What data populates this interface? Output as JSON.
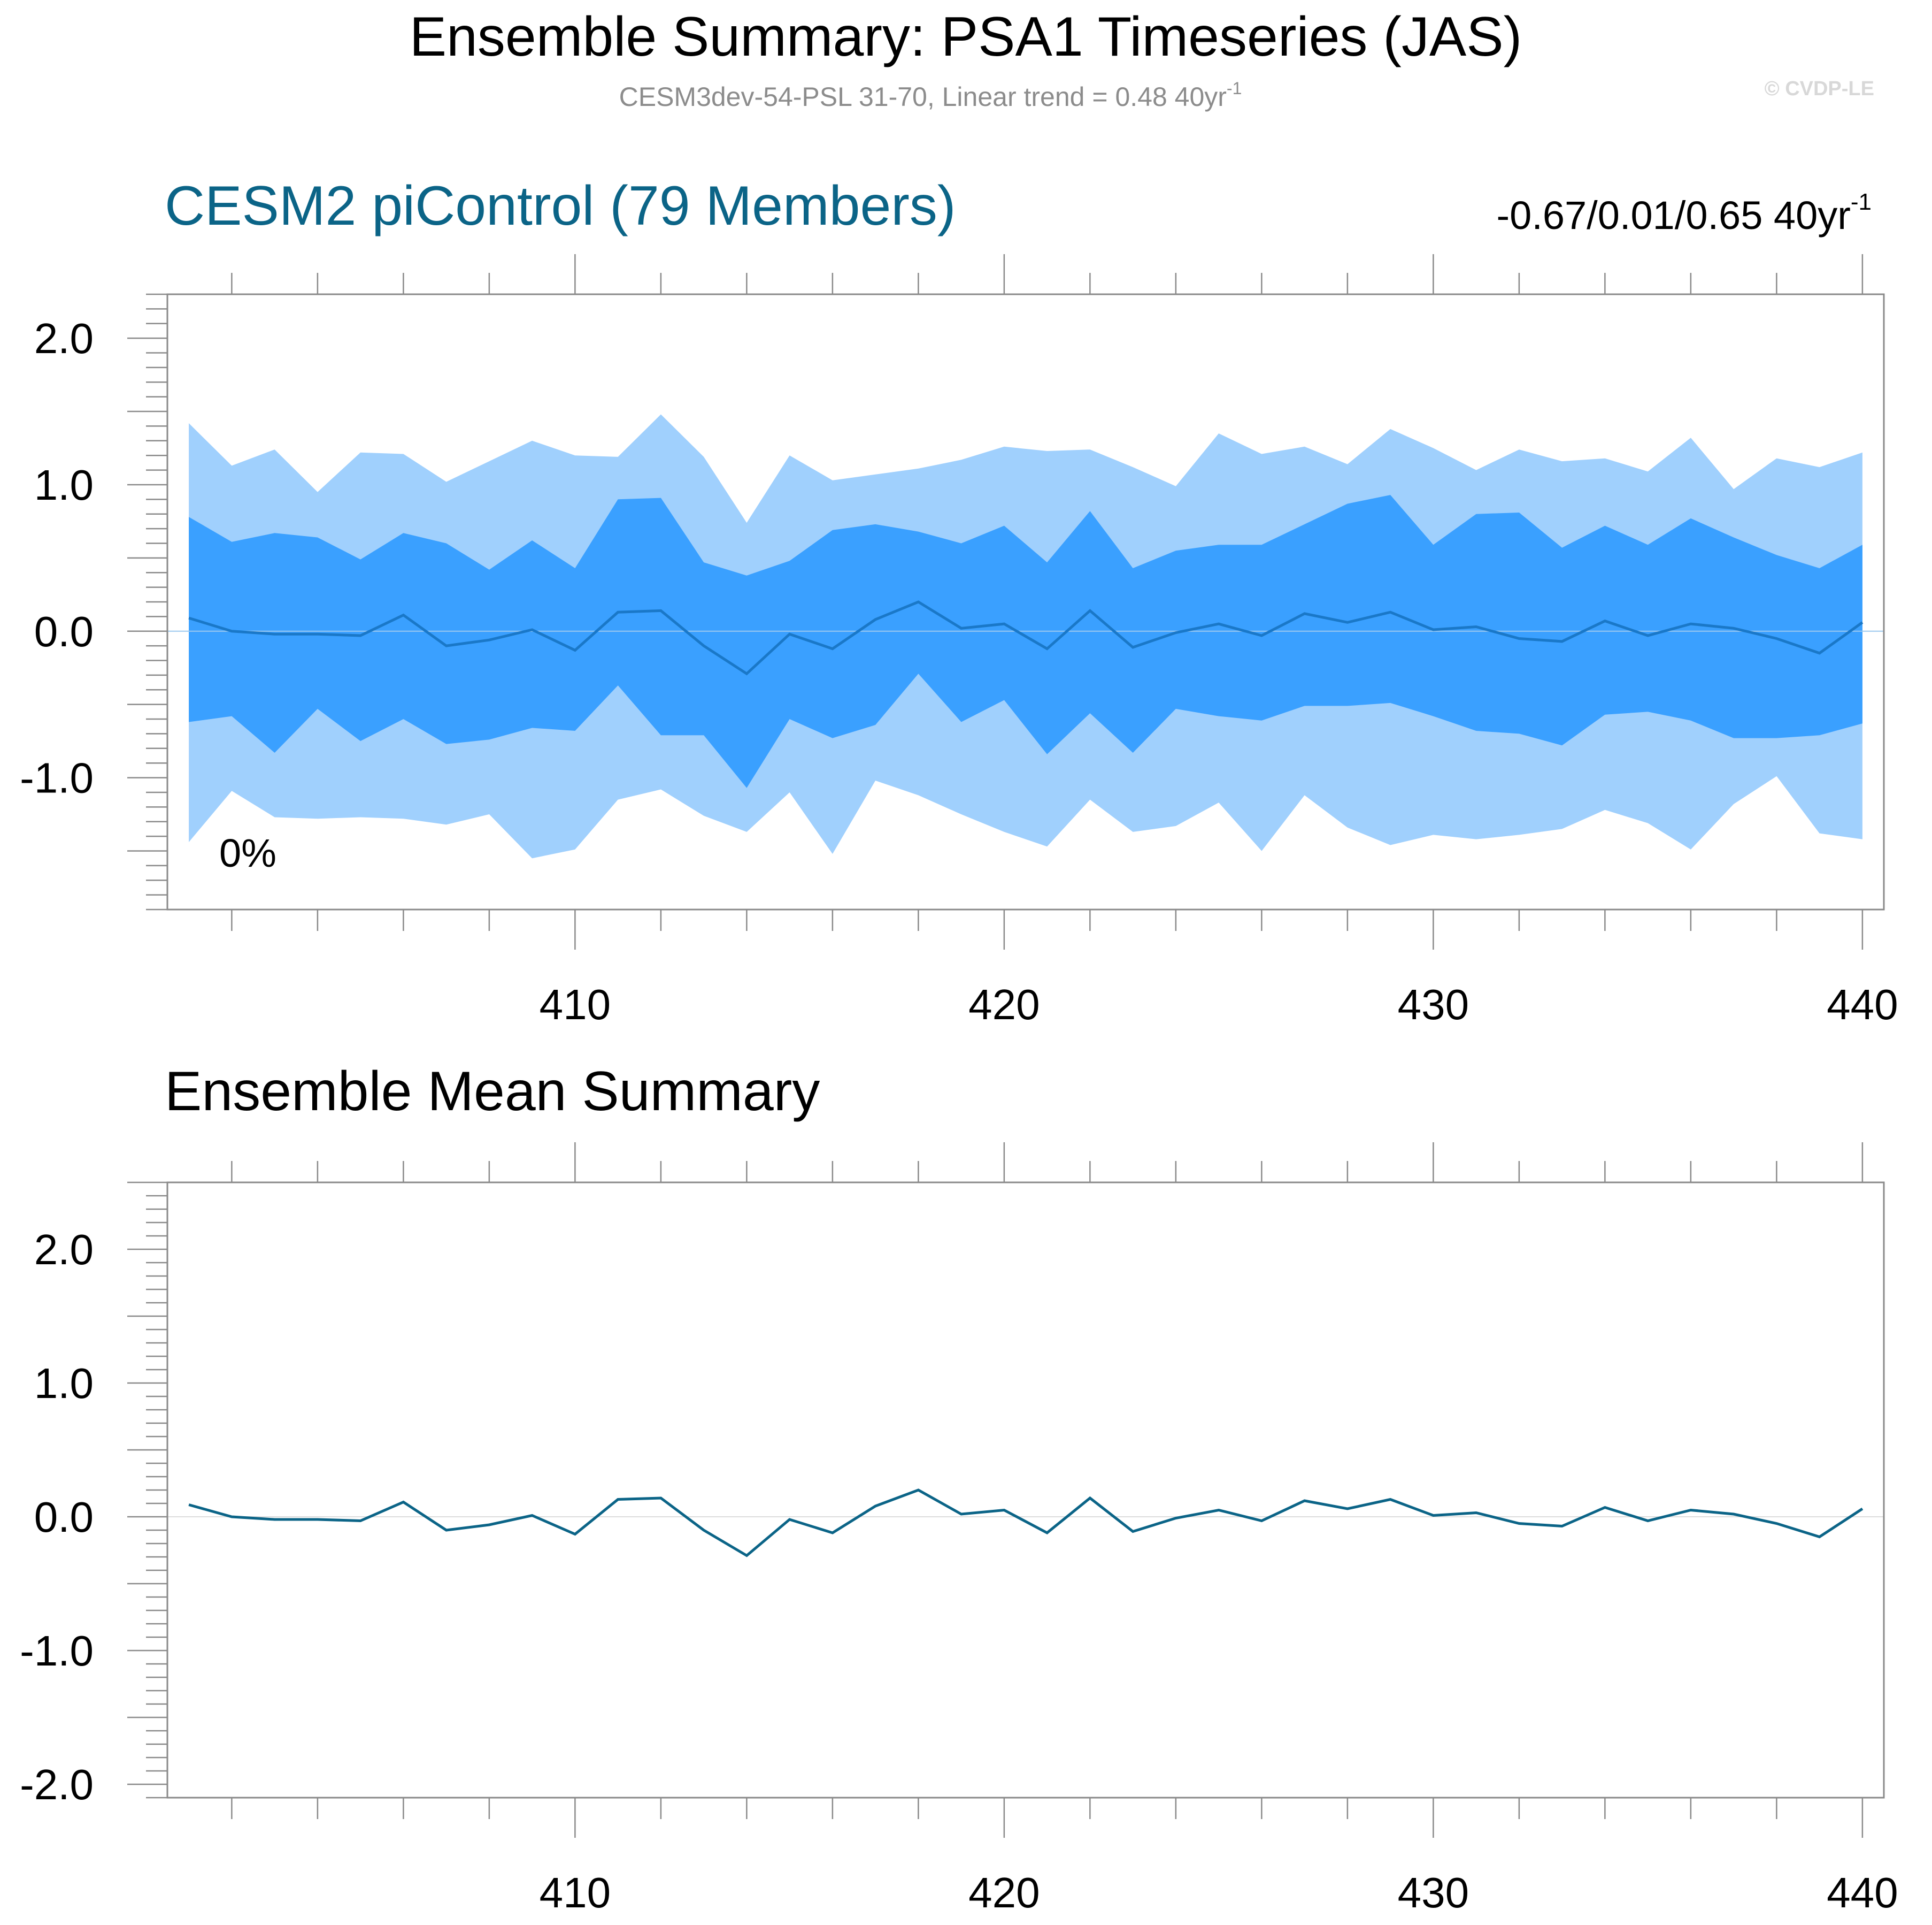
{
  "title": "Ensemble Summary: PSA1 Timeseries (JAS)",
  "subtitle": {
    "text": "CESM3dev-54-PSL 31-70, Linear trend = 0.48 40yr",
    "superscript": "-1"
  },
  "watermark": "© CVDP-LE",
  "colors": {
    "outer_band": "#a0d0fd",
    "inner_band": "#3aa0ff",
    "median_line": "#1a78c8",
    "mean_line": "#0b6487",
    "panel_title": "#0b6487",
    "text": "#000000",
    "subtitle": "#8c8c8c",
    "watermark": "#d8d8d8",
    "axis": "#8a8a8a",
    "zero_line": "#dddddd"
  },
  "chart_data": [
    {
      "type": "area",
      "title": "CESM2 piControl (79 Members)",
      "right_label": {
        "text": "-0.67/0.01/0.65 40yr",
        "superscript": "-1"
      },
      "annotation": "0%",
      "x": [
        401,
        402,
        403,
        404,
        405,
        406,
        407,
        408,
        409,
        410,
        411,
        412,
        413,
        414,
        415,
        416,
        417,
        418,
        419,
        420,
        421,
        422,
        423,
        424,
        425,
        426,
        427,
        428,
        429,
        430,
        431,
        432,
        433,
        434,
        435,
        436,
        437,
        438,
        439,
        440
      ],
      "xlim": [
        400.5,
        440.5
      ],
      "xticks": [
        410,
        420,
        430,
        440
      ],
      "xtick_labels": [
        "410",
        "420",
        "430",
        "440"
      ],
      "ylim": [
        -1.9,
        2.3
      ],
      "yticks": [
        -1.0,
        0.0,
        1.0,
        2.0
      ],
      "ytick_labels": [
        "-1.0",
        "0.0",
        "1.0",
        "2.0"
      ],
      "series": [
        {
          "name": "max",
          "values": [
            1.42,
            1.13,
            1.24,
            0.95,
            1.22,
            1.21,
            1.02,
            1.16,
            1.3,
            1.2,
            1.19,
            1.48,
            1.19,
            0.74,
            1.2,
            1.03,
            1.07,
            1.11,
            1.17,
            1.26,
            1.23,
            1.24,
            1.12,
            0.99,
            1.35,
            1.21,
            1.26,
            1.14,
            1.38,
            1.25,
            1.1,
            1.24,
            1.16,
            1.18,
            1.09,
            1.32,
            0.97,
            1.18,
            1.12,
            1.22
          ]
        },
        {
          "name": "upper",
          "values": [
            0.78,
            0.61,
            0.67,
            0.64,
            0.49,
            0.67,
            0.6,
            0.42,
            0.62,
            0.43,
            0.9,
            0.91,
            0.47,
            0.38,
            0.48,
            0.69,
            0.73,
            0.68,
            0.6,
            0.72,
            0.47,
            0.82,
            0.43,
            0.55,
            0.59,
            0.59,
            0.73,
            0.87,
            0.93,
            0.59,
            0.8,
            0.81,
            0.57,
            0.72,
            0.59,
            0.77,
            0.64,
            0.52,
            0.43,
            0.59
          ]
        },
        {
          "name": "median",
          "values": [
            0.09,
            0.0,
            -0.02,
            -0.02,
            -0.03,
            0.11,
            -0.1,
            -0.06,
            0.01,
            -0.13,
            0.13,
            0.14,
            -0.1,
            -0.29,
            -0.02,
            -0.12,
            0.08,
            0.2,
            0.02,
            0.05,
            -0.12,
            0.14,
            -0.11,
            -0.01,
            0.05,
            -0.03,
            0.12,
            0.06,
            0.13,
            0.01,
            0.03,
            -0.05,
            -0.07,
            0.07,
            -0.03,
            0.05,
            0.02,
            -0.05,
            -0.15,
            0.06
          ]
        },
        {
          "name": "lower",
          "values": [
            -0.62,
            -0.58,
            -0.83,
            -0.53,
            -0.75,
            -0.6,
            -0.77,
            -0.74,
            -0.66,
            -0.68,
            -0.37,
            -0.71,
            -0.71,
            -1.07,
            -0.6,
            -0.73,
            -0.64,
            -0.29,
            -0.62,
            -0.47,
            -0.84,
            -0.56,
            -0.83,
            -0.53,
            -0.58,
            -0.61,
            -0.51,
            -0.51,
            -0.49,
            -0.58,
            -0.68,
            -0.7,
            -0.78,
            -0.57,
            -0.55,
            -0.61,
            -0.73,
            -0.73,
            -0.71,
            -0.63
          ]
        },
        {
          "name": "min",
          "values": [
            -1.44,
            -1.09,
            -1.27,
            -1.28,
            -1.27,
            -1.28,
            -1.32,
            -1.25,
            -1.55,
            -1.49,
            -1.15,
            -1.08,
            -1.26,
            -1.37,
            -1.1,
            -1.52,
            -1.02,
            -1.12,
            -1.25,
            -1.37,
            -1.47,
            -1.15,
            -1.37,
            -1.33,
            -1.17,
            -1.5,
            -1.12,
            -1.34,
            -1.46,
            -1.39,
            -1.42,
            -1.39,
            -1.35,
            -1.22,
            -1.31,
            -1.49,
            -1.18,
            -0.99,
            -1.38,
            -1.42
          ]
        }
      ]
    },
    {
      "type": "line",
      "title": "Ensemble Mean Summary",
      "x": [
        401,
        402,
        403,
        404,
        405,
        406,
        407,
        408,
        409,
        410,
        411,
        412,
        413,
        414,
        415,
        416,
        417,
        418,
        419,
        420,
        421,
        422,
        423,
        424,
        425,
        426,
        427,
        428,
        429,
        430,
        431,
        432,
        433,
        434,
        435,
        436,
        437,
        438,
        439,
        440
      ],
      "xlim": [
        400.5,
        440.5
      ],
      "xticks": [
        410,
        420,
        430,
        440
      ],
      "xtick_labels": [
        "410",
        "420",
        "430",
        "440"
      ],
      "ylim": [
        -2.1,
        2.5
      ],
      "yticks": [
        -2.0,
        -1.0,
        0.0,
        1.0,
        2.0
      ],
      "ytick_labels": [
        "-2.0",
        "-1.0",
        "0.0",
        "1.0",
        "2.0"
      ],
      "series": [
        {
          "name": "ensemble-mean",
          "values": [
            0.09,
            0.0,
            -0.02,
            -0.02,
            -0.03,
            0.11,
            -0.1,
            -0.06,
            0.01,
            -0.13,
            0.13,
            0.14,
            -0.1,
            -0.29,
            -0.02,
            -0.12,
            0.08,
            0.2,
            0.02,
            0.05,
            -0.12,
            0.14,
            -0.11,
            -0.01,
            0.05,
            -0.03,
            0.12,
            0.06,
            0.13,
            0.01,
            0.03,
            -0.05,
            -0.07,
            0.07,
            -0.03,
            0.05,
            0.02,
            -0.05,
            -0.15,
            0.06
          ]
        }
      ]
    }
  ]
}
